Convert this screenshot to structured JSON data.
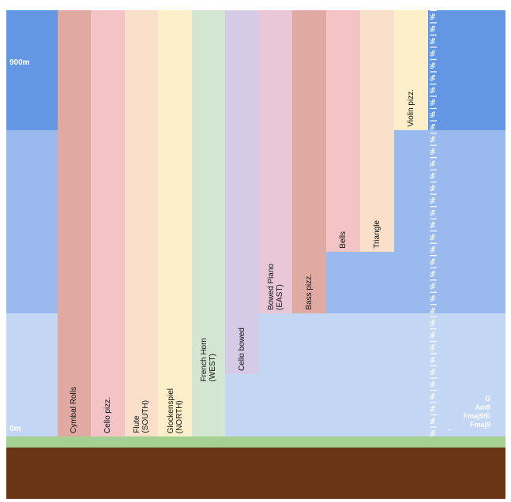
{
  "altitude_labels": {
    "top": "900m",
    "bottom": "0m"
  },
  "instruments": [
    {
      "label": "Cymbal Rolls",
      "color": "#e0aaa3"
    },
    {
      "label": "Cello pizz.",
      "color": "#f3c3c5"
    },
    {
      "label": "Flute\n(SOUTH)",
      "color": "#fadfcb"
    },
    {
      "label": "Glockenspiel\n(NORTH)",
      "color": "#fdefc9"
    },
    {
      "label": "French Horn\n(WEST)",
      "color": "#d2e6d1"
    },
    {
      "label": "Cello bowed",
      "color": "#d6cbe6"
    },
    {
      "label": "Bowed Piano\n(EAST)",
      "color": "#e9c7d8"
    },
    {
      "label": "Bass pizz.",
      "color": "#e0aaa3"
    },
    {
      "label": "Bells",
      "color": "#f3c3c5"
    },
    {
      "label": "Triangle",
      "color": "#fadfcb"
    },
    {
      "label": "Violin pizz.",
      "color": "#fdefc9"
    }
  ],
  "repeat_strip_text": "% | % | % | % | % | % | % | % | % | % | % | % | % | % | % | % | % | % | % | % | % | % | % | % | % | % | % | % | % | % | % | % | % | % | % | % | % | % | % |",
  "chords": [
    "G",
    "Am9",
    "Fmaj9/E",
    "Fmaj9"
  ],
  "arrow": "←",
  "colors": {
    "sky_high": "#6397e3",
    "sky_mid": "#9ab9ef",
    "sky_low": "#c3d6f4",
    "grass": "#a6cf92",
    "soil": "#6a3514"
  }
}
